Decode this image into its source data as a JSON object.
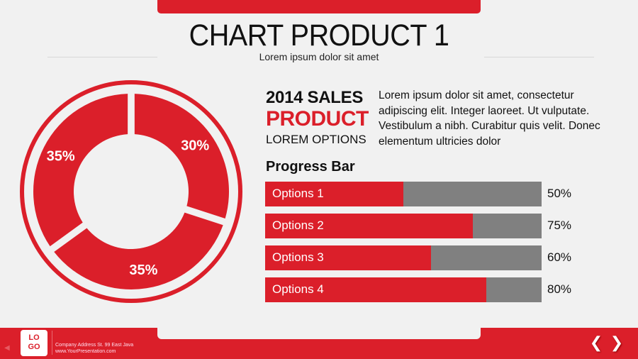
{
  "header": {
    "title": "CHART PRODUCT 1",
    "subtitle": "Lorem ipsum dolor sit amet"
  },
  "summary": {
    "line1": "2014 SALES",
    "line2": "PRODUCT",
    "line3": "LOREM OPTIONS",
    "description": "Lorem ipsum dolor sit amet, consectetur adipiscing elit. Integer laoreet. Ut vulputate. Vestibulum a nibh. Curabitur quis velit. Donec elementum ultricies dolor"
  },
  "progress": {
    "title": "Progress Bar",
    "items": [
      {
        "label": "Options 1",
        "value": 50,
        "text": "50%"
      },
      {
        "label": "Options 2",
        "value": 75,
        "text": "75%"
      },
      {
        "label": "Options 3",
        "value": 60,
        "text": "60%"
      },
      {
        "label": "Options 4",
        "value": 80,
        "text": "80%"
      }
    ]
  },
  "chart_data": {
    "type": "pie",
    "variant": "donut",
    "values": [
      30,
      35,
      35
    ],
    "labels": [
      "30%",
      "35%",
      "35%"
    ]
  },
  "footer": {
    "logo": "LO GO",
    "address": "Company Address St. 99 East Java",
    "website": "www.YourPresentation.com",
    "prev_icon": "chevron-left-icon",
    "next_icon": "chevron-right-icon"
  },
  "colors": {
    "accent": "#db1f2a",
    "track": "#808080",
    "background": "#f1f1f1"
  }
}
